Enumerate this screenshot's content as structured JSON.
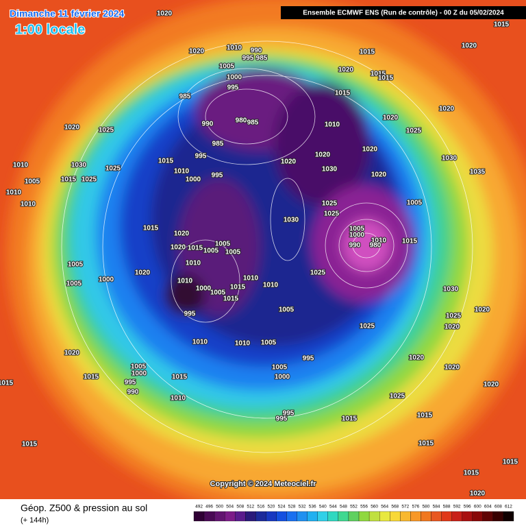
{
  "header": {
    "date": "Dimanche 11 février 2024",
    "time": "1:00 locale",
    "model": "Ensemble ECMWF ENS  (Run de contrôle)  -  00 Z du 05/02/2024"
  },
  "map": {
    "copyright": "Copyright © 2024 Meteociel.fr",
    "pressure_labels": [
      1020,
      1015,
      1020,
      1020,
      1010,
      990,
      995,
      985,
      1015,
      1005,
      1020,
      1015,
      1015,
      1000,
      995,
      1015,
      985,
      1020,
      990,
      985,
      980,
      1010,
      1020,
      1025,
      1020,
      1025,
      985,
      1020,
      995,
      1020,
      1020,
      1030,
      1030,
      1010,
      1030,
      1025,
      1015,
      1035,
      1020,
      1010,
      1000,
      995,
      1015,
      1025,
      1005,
      1010,
      1025,
      1005,
      1010,
      1025,
      1030,
      1015,
      1020,
      1005,
      1000,
      1010,
      1015,
      990,
      980,
      1020,
      1015,
      1005,
      1005,
      1005,
      1010,
      1005,
      1000,
      1020,
      1025,
      1010,
      1010,
      1005,
      1010,
      1015,
      1000,
      1005,
      1015,
      995,
      1005,
      1025,
      1030,
      1025,
      1020,
      1020,
      1010,
      1010,
      1005,
      995,
      1020,
      1020,
      1020,
      1005,
      1000,
      1015,
      995,
      990,
      1015,
      1005,
      1000,
      1020,
      1015,
      1010,
      1025,
      1015,
      1015,
      995,
      995,
      1015,
      1015,
      1015,
      1015,
      1020
    ]
  },
  "footer": {
    "title": "Géop. Z500 & pression au sol",
    "lead": "(+ 144h)"
  },
  "legend": {
    "values": [
      492,
      496,
      500,
      504,
      508,
      512,
      516,
      520,
      524,
      528,
      532,
      536,
      540,
      544,
      548,
      552,
      556,
      560,
      564,
      568,
      572,
      576,
      580,
      584,
      588,
      592,
      596,
      600,
      604,
      608,
      612
    ],
    "colors": [
      "#300035",
      "#4a0a55",
      "#621470",
      "#7c1c88",
      "#5a1c8c",
      "#2a1a7a",
      "#1c2a9a",
      "#1838c0",
      "#1450e0",
      "#1a70f0",
      "#2090f0",
      "#20b0f0",
      "#30d0e8",
      "#30d8c0",
      "#40d890",
      "#60d060",
      "#90d840",
      "#c0e040",
      "#e8e840",
      "#f8d838",
      "#f8b830",
      "#f89828",
      "#f07820",
      "#e85820",
      "#e03818",
      "#c82018",
      "#a81010",
      "#880808",
      "#600404",
      "#380000",
      "#100000"
    ]
  }
}
